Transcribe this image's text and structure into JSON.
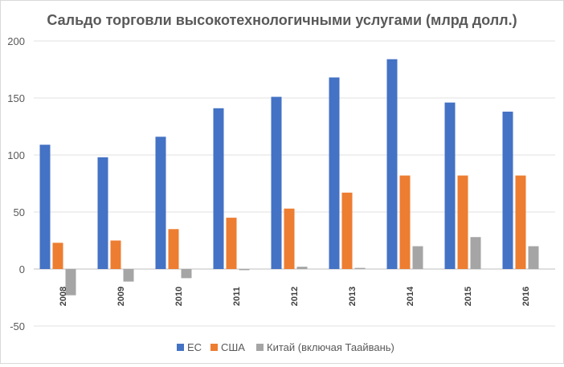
{
  "chart_data": {
    "type": "bar",
    "title": "Сальдо торговли высокотехнологичными услугами (млрд долл.)",
    "categories": [
      "2008",
      "2009",
      "2010",
      "2011",
      "2012",
      "2013",
      "2014",
      "2015",
      "2016"
    ],
    "series": [
      {
        "name": "ЕС",
        "color": "#4472c4",
        "values": [
          109,
          98,
          116,
          141,
          151,
          168,
          184,
          146,
          138
        ]
      },
      {
        "name": "США",
        "color": "#ed7d31",
        "values": [
          23,
          25,
          35,
          45,
          53,
          67,
          82,
          82,
          82
        ]
      },
      {
        "name": "Китай (включая Таайвань)",
        "color": "#a5a5a5",
        "values": [
          -23,
          -11,
          -8,
          -1,
          2,
          1,
          20,
          28,
          20
        ]
      }
    ],
    "yticks": [
      "-50",
      "0",
      "50",
      "100",
      "150",
      "200"
    ],
    "ylim": [
      -50,
      200
    ],
    "grid": true,
    "legend": "bottom"
  }
}
